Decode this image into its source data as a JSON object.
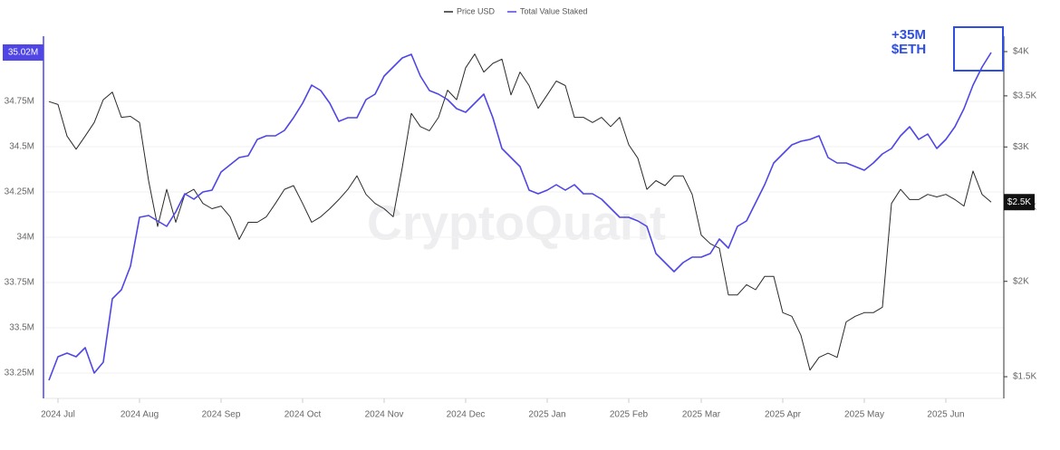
{
  "chart_data": {
    "type": "line",
    "legend": "top",
    "grid": true,
    "watermark": "CryptoQuant",
    "annotation": [
      "+35M",
      "$ETH"
    ],
    "annotation_color": "#2f4fe0",
    "categories": [
      null,
      "2024 Jul",
      null,
      null,
      null,
      null,
      null,
      null,
      null,
      null,
      "2024 Aug",
      null,
      null,
      null,
      null,
      null,
      null,
      null,
      null,
      "2024 Sep",
      null,
      null,
      null,
      null,
      null,
      null,
      null,
      null,
      "2024 Oct",
      null,
      null,
      null,
      null,
      null,
      null,
      null,
      null,
      "2024 Nov",
      null,
      null,
      null,
      null,
      null,
      null,
      null,
      null,
      "2024 Dec",
      null,
      null,
      null,
      null,
      null,
      null,
      null,
      null,
      "2025 Jan",
      null,
      null,
      null,
      null,
      null,
      null,
      null,
      null,
      "2025 Feb",
      null,
      null,
      null,
      null,
      null,
      null,
      null,
      "2025 Mar",
      null,
      null,
      null,
      null,
      null,
      null,
      null,
      null,
      "2025 Apr",
      null,
      null,
      null,
      null,
      null,
      null,
      null,
      null,
      "2025 May",
      null,
      null,
      null,
      null,
      null,
      null,
      null,
      null,
      "2025 Jun",
      null,
      null,
      null,
      null,
      null
    ],
    "ylim": [
      33.11,
      35.11
    ],
    "yticks": [
      {
        "value": 33.25,
        "label": "33.25M"
      },
      {
        "value": 33.5,
        "label": "33.5M"
      },
      {
        "value": 33.75,
        "label": "33.75M"
      },
      {
        "value": 34,
        "label": "34M"
      },
      {
        "value": 34.25,
        "label": "34.25M"
      },
      {
        "value": 34.5,
        "label": "34.5M"
      },
      {
        "value": 34.75,
        "label": "34.75M"
      }
    ],
    "y2lim": [
      1405,
      4190
    ],
    "y2scale": "log",
    "y2ticks": [
      {
        "value": 1500,
        "label": "$1.5K"
      },
      {
        "value": 2000,
        "label": "$2K"
      },
      {
        "value": 2500,
        "label": "$2.5K"
      },
      {
        "value": 3000,
        "label": "$3K"
      },
      {
        "value": 3500,
        "label": "$3.5K"
      },
      {
        "value": 4000,
        "label": "$4K"
      }
    ],
    "series": [
      {
        "name": "Price USD",
        "color": "#2a2a2a",
        "axis": "y2",
        "last_value_label": "$2.5K",
        "values": [
          3440,
          3410,
          3100,
          2980,
          3100,
          3230,
          3460,
          3540,
          3280,
          3290,
          3230,
          2710,
          2360,
          2640,
          2390,
          2600,
          2640,
          2530,
          2490,
          2510,
          2430,
          2270,
          2390,
          2390,
          2430,
          2530,
          2640,
          2670,
          2530,
          2390,
          2430,
          2490,
          2560,
          2640,
          2750,
          2600,
          2530,
          2490,
          2430,
          2820,
          3320,
          3190,
          3150,
          3280,
          3560,
          3460,
          3810,
          3970,
          3760,
          3860,
          3910,
          3510,
          3760,
          3610,
          3370,
          3510,
          3660,
          3610,
          3280,
          3280,
          3230,
          3280,
          3190,
          3280,
          3020,
          2900,
          2640,
          2710,
          2670,
          2750,
          2750,
          2600,
          2300,
          2240,
          2210,
          1920,
          1920,
          1980,
          1950,
          2030,
          2030,
          1820,
          1800,
          1700,
          1530,
          1590,
          1610,
          1590,
          1770,
          1800,
          1820,
          1820,
          1850,
          2530,
          2640,
          2560,
          2560,
          2600,
          2580,
          2600,
          2560,
          2510,
          2790,
          2600,
          2540
        ]
      },
      {
        "name": "Total Value Staked",
        "color": "#4f46e5",
        "axis": "y",
        "last_value_label": "35.02M",
        "values": [
          33.21,
          33.34,
          33.36,
          33.34,
          33.39,
          33.25,
          33.31,
          33.66,
          33.71,
          33.84,
          34.11,
          34.12,
          34.09,
          34.06,
          34.14,
          34.24,
          34.21,
          34.25,
          34.26,
          34.36,
          34.4,
          34.44,
          34.45,
          34.54,
          34.56,
          34.56,
          34.59,
          34.66,
          34.74,
          34.84,
          34.81,
          34.74,
          34.64,
          34.66,
          34.66,
          34.76,
          34.79,
          34.89,
          34.94,
          34.99,
          35.01,
          34.89,
          34.81,
          34.79,
          34.76,
          34.71,
          34.69,
          34.74,
          34.79,
          34.66,
          34.49,
          34.44,
          34.39,
          34.26,
          34.24,
          34.26,
          34.29,
          34.26,
          34.29,
          34.24,
          34.24,
          34.21,
          34.16,
          34.11,
          34.11,
          34.09,
          34.06,
          33.91,
          33.86,
          33.81,
          33.86,
          33.89,
          33.89,
          33.91,
          33.99,
          33.94,
          34.06,
          34.09,
          34.19,
          34.29,
          34.41,
          34.46,
          34.51,
          34.53,
          34.54,
          34.56,
          34.44,
          34.41,
          34.41,
          34.39,
          34.37,
          34.41,
          34.46,
          34.49,
          34.56,
          34.61,
          34.54,
          34.57,
          34.49,
          34.54,
          34.61,
          34.71,
          34.84,
          34.94,
          35.02
        ]
      }
    ]
  }
}
